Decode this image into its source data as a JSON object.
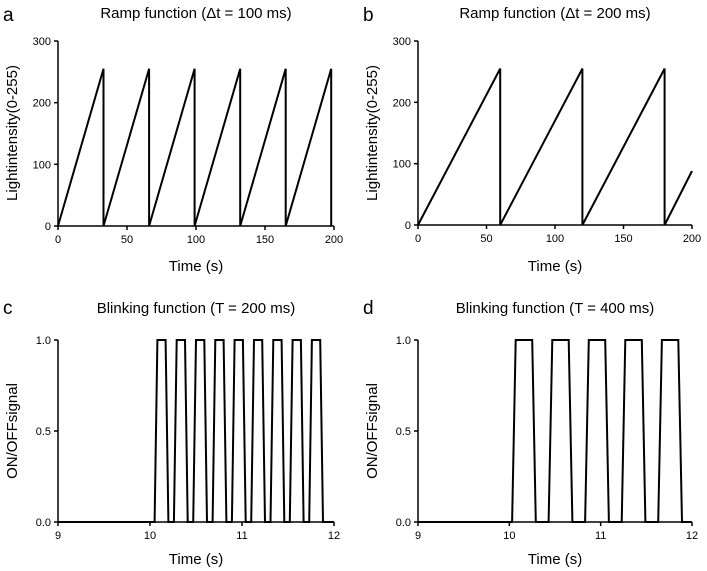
{
  "chart_data": [
    {
      "panel_letter": "a",
      "type": "line",
      "title": "Ramp function (Δt = 100 ms)",
      "xlabel": "Time (s)",
      "ylabel": "Lightintensity(0-255)",
      "xlim": [
        0,
        200
      ],
      "ylim": [
        0,
        300
      ],
      "x_ticks": [
        0,
        50,
        100,
        150,
        200
      ],
      "y_ticks": [
        0,
        100,
        200,
        300
      ],
      "x_tick_labels": [
        "0",
        "50",
        "100",
        "150",
        "200"
      ],
      "y_tick_labels": [
        "0",
        "100",
        "200",
        "300"
      ],
      "grid": false,
      "series": [
        {
          "x": [
            0,
            33,
            33,
            66,
            66,
            99,
            99,
            132,
            132,
            165,
            165,
            198,
            198
          ],
          "y": [
            0,
            255,
            0,
            255,
            0,
            255,
            0,
            255,
            0,
            255,
            0,
            255,
            0
          ]
        }
      ]
    },
    {
      "panel_letter": "b",
      "type": "line",
      "title": "Ramp function (Δt = 200 ms)",
      "xlabel": "Time (s)",
      "ylabel": "Lightintensity(0-255)",
      "xlim": [
        0,
        200
      ],
      "ylim": [
        0,
        300
      ],
      "x_ticks": [
        0,
        50,
        100,
        150,
        200
      ],
      "y_ticks": [
        0,
        100,
        200,
        300
      ],
      "x_tick_labels": [
        "0",
        "50",
        "100",
        "150",
        "200"
      ],
      "y_tick_labels": [
        "0",
        "100",
        "200",
        "300"
      ],
      "grid": false,
      "series": [
        {
          "x": [
            0,
            60,
            60,
            120,
            120,
            180,
            180,
            200
          ],
          "y": [
            0,
            255,
            0,
            255,
            0,
            255,
            0,
            88
          ]
        }
      ]
    },
    {
      "panel_letter": "c",
      "type": "line",
      "title": "Blinking function (T = 200 ms)",
      "xlabel": "Time (s)",
      "ylabel": "ON/OFFsignal",
      "xlim": [
        9,
        12
      ],
      "ylim": [
        0,
        1
      ],
      "x_ticks": [
        9,
        10,
        11,
        12
      ],
      "y_ticks": [
        0,
        0.5,
        1
      ],
      "x_tick_labels": [
        "9",
        "10",
        "11",
        "12"
      ],
      "y_tick_labels": [
        "0.0",
        "0.5",
        "1.0"
      ],
      "grid": false,
      "series": [
        {
          "x": [
            9,
            10.05,
            10.08,
            10.17,
            10.2,
            10.26,
            10.29,
            10.38,
            10.41,
            10.47,
            10.5,
            10.59,
            10.62,
            10.68,
            10.71,
            10.8,
            10.83,
            10.89,
            10.92,
            11.01,
            11.04,
            11.1,
            11.13,
            11.22,
            11.25,
            11.31,
            11.34,
            11.43,
            11.46,
            11.52,
            11.55,
            11.64,
            11.67,
            11.73,
            11.76,
            11.85,
            11.88,
            11.93,
            12
          ],
          "y": [
            0,
            0,
            1,
            1,
            0,
            0,
            1,
            1,
            0,
            0,
            1,
            1,
            0,
            0,
            1,
            1,
            0,
            0,
            1,
            1,
            0,
            0,
            1,
            1,
            0,
            0,
            1,
            1,
            0,
            0,
            1,
            1,
            0,
            0,
            1,
            1,
            0,
            0,
            0
          ]
        }
      ]
    },
    {
      "panel_letter": "d",
      "type": "line",
      "title": "Blinking function (T = 400 ms)",
      "xlabel": "Time (s)",
      "ylabel": "ON/OFFsignal",
      "xlim": [
        9,
        12
      ],
      "ylim": [
        0,
        1
      ],
      "x_ticks": [
        9,
        10,
        11,
        12
      ],
      "y_ticks": [
        0,
        0.5,
        1
      ],
      "x_tick_labels": [
        "9",
        "10",
        "11",
        "12"
      ],
      "y_tick_labels": [
        "0.0",
        "0.5",
        "1.0"
      ],
      "grid": false,
      "series": [
        {
          "x": [
            9,
            10.03,
            10.07,
            10.25,
            10.29,
            10.43,
            10.47,
            10.65,
            10.69,
            10.83,
            10.87,
            11.05,
            11.09,
            11.23,
            11.27,
            11.45,
            11.49,
            11.63,
            11.67,
            11.85,
            11.89,
            12
          ],
          "y": [
            0,
            0,
            1,
            1,
            0,
            0,
            1,
            1,
            0,
            0,
            1,
            1,
            0,
            0,
            1,
            1,
            0,
            0,
            1,
            1,
            0,
            0
          ]
        }
      ]
    }
  ]
}
